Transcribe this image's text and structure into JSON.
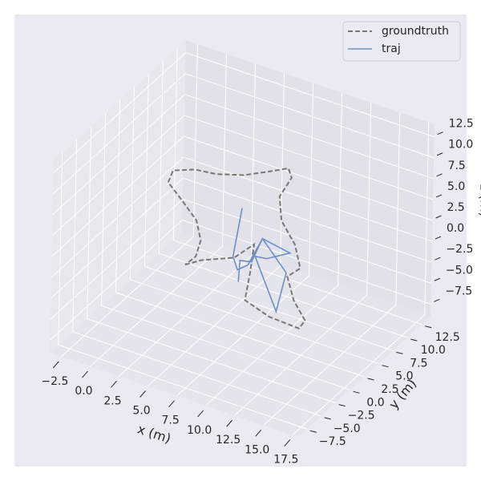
{
  "chart_data": {
    "type": "line3d",
    "xlabel": "x (m)",
    "ylabel": "y (m)",
    "zlabel": "z (m)",
    "xlim": [
      -3.5,
      18
    ],
    "ylim": [
      -9,
      14
    ],
    "zlim": [
      -9,
      14
    ],
    "xticks": [
      {
        "value": -2.5,
        "label": "−2.5"
      },
      {
        "value": 0,
        "label": "0.0"
      },
      2.5,
      {
        "value": 5,
        "label": "5.0"
      },
      7.5,
      {
        "value": 10,
        "label": "10.0"
      },
      12.5,
      {
        "value": 15,
        "label": "15.0"
      },
      17.5
    ],
    "yticks": [
      {
        "value": -7.5,
        "label": "−7.5"
      },
      {
        "value": -5,
        "label": "−5.0"
      },
      {
        "value": -2.5,
        "label": "−2.5"
      },
      {
        "value": 0,
        "label": "0.0"
      },
      2.5,
      {
        "value": 5,
        "label": "5.0"
      },
      7.5,
      {
        "value": 10,
        "label": "10.0"
      },
      12.5
    ],
    "zticks": [
      {
        "value": -7.5,
        "label": "−7.5"
      },
      {
        "value": -5,
        "label": "−5.0"
      },
      {
        "value": -2.5,
        "label": "−2.5"
      },
      {
        "value": 0,
        "label": "0.0"
      },
      2.5,
      {
        "value": 5,
        "label": "5.0"
      },
      7.5,
      {
        "value": 10,
        "label": "10.0"
      },
      12.5
    ],
    "grid": true,
    "legend": "upper right",
    "series": [
      {
        "name": "groundtruth",
        "color": "#777777",
        "dashed": true,
        "x": [
          2.4,
          3.8,
          6.6,
          8.3,
          8.0,
          7.6,
          9.7,
          12.3,
          12.8,
          11.8,
          11.2,
          12.3,
          11.8,
          10.6,
          10.4,
          11.4,
          11.1,
          9.4,
          7.3,
          4.9,
          3.1,
          1.2,
          0.8,
          2.1,
          3.3,
          3.7,
          3.3,
          2.4
        ],
        "y": [
          2.5,
          2.5,
          2.5,
          2.5,
          2.5,
          2.5,
          2.5,
          2.5,
          2.5,
          2.5,
          2.5,
          2.5,
          2.5,
          2.5,
          2.5,
          2.5,
          2.5,
          2.5,
          2.5,
          2.5,
          2.5,
          2.5,
          2.5,
          2.5,
          2.5,
          2.5,
          2.5,
          2.5
        ],
        "z": [
          -2.9,
          -1.7,
          -0.1,
          2.3,
          -1.2,
          -4.7,
          -5.7,
          -5.9,
          -4.7,
          -2.8,
          -0.2,
          1.3,
          3.9,
          6.2,
          9.0,
          11.7,
          12.7,
          11.5,
          10.1,
          9.1,
          8.8,
          7.8,
          6.2,
          4.5,
          2.8,
          0.6,
          -1.5,
          -2.9
        ]
      },
      {
        "name": "traj",
        "color": "#6f8fc4",
        "dashed": false,
        "x": [
          7.2,
          6.5,
          6.9,
          7.8,
          9.0,
          11.4,
          9.4,
          8.4,
          10.3,
          11.1,
          9.0,
          8.1,
          7.1,
          7.0
        ],
        "y": [
          2.5,
          2.5,
          2.5,
          2.5,
          2.5,
          2.5,
          2.5,
          2.5,
          2.5,
          2.5,
          2.5,
          2.5,
          2.5,
          2.5
        ],
        "z": [
          6.1,
          0.0,
          -1.4,
          -0.4,
          3.3,
          2.7,
          1.1,
          0.9,
          -4.8,
          0.2,
          3.3,
          0.1,
          -0.2,
          -2.8
        ]
      }
    ]
  }
}
